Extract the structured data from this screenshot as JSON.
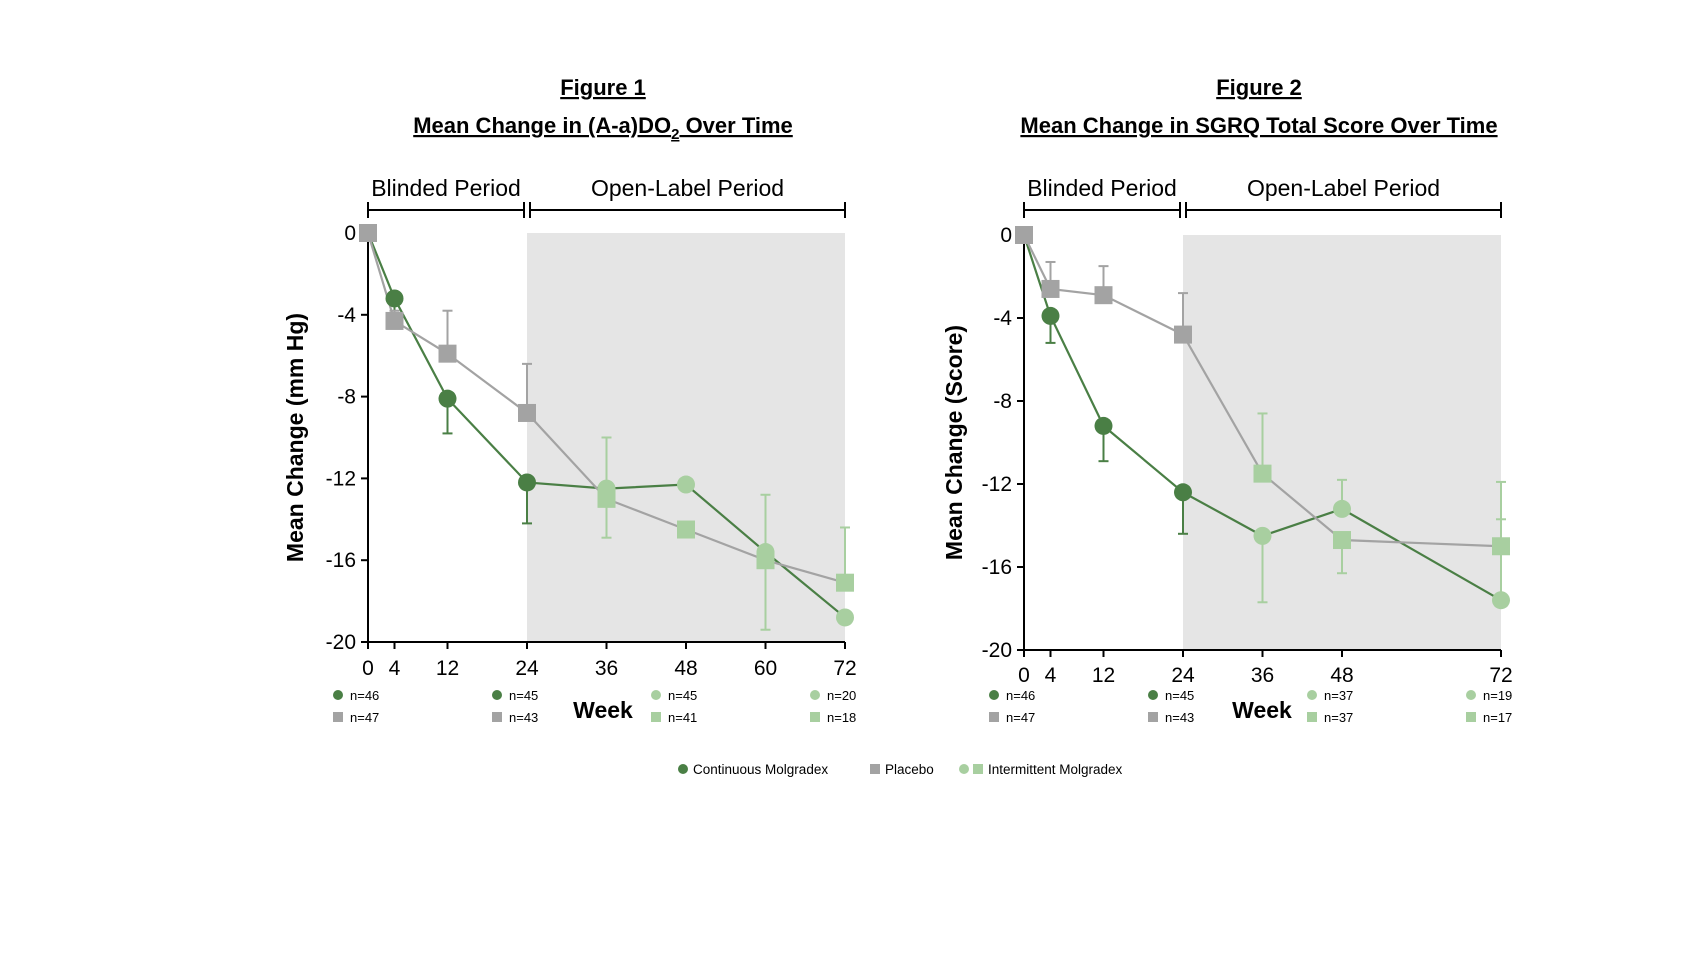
{
  "colors": {
    "continuous": "#4a7f45",
    "placebo": "#a3a3a3",
    "intermittent": "#a8cfa0",
    "shade": "#e5e5e5"
  },
  "legend": {
    "items": [
      {
        "label": "Continuous Molgradex",
        "color": "#4a7f45",
        "markers": [
          "circle"
        ]
      },
      {
        "label": "Placebo",
        "color": "#a3a3a3",
        "markers": [
          "square"
        ]
      },
      {
        "label": "Intermittent Molgradex",
        "color": "#a8cfa0",
        "markers": [
          "circle",
          "square"
        ]
      }
    ]
  },
  "chart_data": [
    {
      "type": "line",
      "figure_label": "Figure 1",
      "title": "Mean Change in (A-a)DO",
      "title_subscript": "2",
      "title_suffix": " Over Time",
      "ylabel": "Mean Change (mm Hg)",
      "xlabel": "Week",
      "ylim": [
        -20,
        0
      ],
      "yticks": [
        0,
        -4,
        -8,
        -12,
        -16,
        -20
      ],
      "xlim": [
        0,
        72
      ],
      "xticks": [
        0,
        4,
        12,
        24,
        36,
        48,
        60,
        72
      ],
      "periods": [
        {
          "label": "Blinded Period",
          "from": 0,
          "to": 24,
          "shaded": false
        },
        {
          "label": "Open-Label Period",
          "from": 24,
          "to": 72,
          "shaded": true
        }
      ],
      "series": [
        {
          "name": "Continuous Molgradex",
          "color_key": "continuous",
          "marker": "circle",
          "points": [
            {
              "x": 0,
              "y": 0
            },
            {
              "x": 4,
              "y": -3.2,
              "err_low": -4.3,
              "err_high": -3.2
            },
            {
              "x": 12,
              "y": -8.1,
              "err_low": -9.8,
              "err_high": -8.1
            },
            {
              "x": 24,
              "y": -12.2,
              "err_low": -14.2,
              "err_high": -12.2
            },
            {
              "x": 36,
              "y": -12.5,
              "err_low": -12.5,
              "err_high": -12.5
            },
            {
              "x": 48,
              "y": -12.3
            },
            {
              "x": 60,
              "y": -15.6
            },
            {
              "x": 72,
              "y": -18.8
            }
          ]
        },
        {
          "name": "Placebo",
          "color_key": "placebo",
          "marker": "square",
          "points": [
            {
              "x": 0,
              "y": 0
            },
            {
              "x": 4,
              "y": -4.3,
              "err_low": -4.3,
              "err_high": -3.8
            },
            {
              "x": 12,
              "y": -5.9,
              "err_low": -5.9,
              "err_high": -3.8
            },
            {
              "x": 24,
              "y": -8.8,
              "err_low": -8.8,
              "err_high": -6.4
            },
            {
              "x": 36,
              "y": -13.0
            },
            {
              "x": 48,
              "y": -14.5
            },
            {
              "x": 60,
              "y": -16.0
            },
            {
              "x": 72,
              "y": -17.1
            }
          ]
        },
        {
          "name": "Intermittent Molgradex (circle)",
          "color_key": "intermittent",
          "marker": "circle",
          "points": [
            {
              "x": 36,
              "y": -12.5
            },
            {
              "x": 48,
              "y": -12.3
            },
            {
              "x": 60,
              "y": -15.6
            },
            {
              "x": 72,
              "y": -18.8
            }
          ]
        },
        {
          "name": "Intermittent Molgradex (square)",
          "color_key": "intermittent",
          "marker": "square",
          "points": [
            {
              "x": 36,
              "y": -13.0,
              "err_low": -14.9,
              "err_high": -10.0
            },
            {
              "x": 48,
              "y": -14.5
            },
            {
              "x": 60,
              "y": -16.0,
              "err_low": -19.4,
              "err_high": -12.8
            },
            {
              "x": 72,
              "y": -17.1,
              "err_low": -17.1,
              "err_high": -14.4
            }
          ]
        }
      ],
      "n_counts": [
        {
          "x": 0,
          "row": 0,
          "marker": "circle",
          "color_key": "continuous",
          "text": "n=46"
        },
        {
          "x": 0,
          "row": 1,
          "marker": "square",
          "color_key": "placebo",
          "text": "n=47"
        },
        {
          "x": 24,
          "row": 0,
          "marker": "circle",
          "color_key": "continuous",
          "text": "n=45"
        },
        {
          "x": 24,
          "row": 1,
          "marker": "square",
          "color_key": "placebo",
          "text": "n=43"
        },
        {
          "x": 48,
          "row": 0,
          "marker": "circle",
          "color_key": "intermittent",
          "text": "n=45"
        },
        {
          "x": 48,
          "row": 1,
          "marker": "square",
          "color_key": "intermittent",
          "text": "n=41"
        },
        {
          "x": 72,
          "row": 0,
          "marker": "circle",
          "color_key": "intermittent",
          "text": "n=20"
        },
        {
          "x": 72,
          "row": 1,
          "marker": "square",
          "color_key": "intermittent",
          "text": "n=18"
        }
      ]
    },
    {
      "type": "line",
      "figure_label": "Figure 2",
      "title": "Mean Change in SGRQ Total Score Over Time",
      "title_subscript": "",
      "title_suffix": "",
      "ylabel": "Mean Change (Score)",
      "xlabel": "Week",
      "ylim": [
        -20,
        0
      ],
      "yticks": [
        0,
        -4,
        -8,
        -12,
        -16,
        -20
      ],
      "xlim": [
        0,
        72
      ],
      "xticks": [
        0,
        4,
        12,
        24,
        36,
        48,
        72
      ],
      "periods": [
        {
          "label": "Blinded Period",
          "from": 0,
          "to": 24,
          "shaded": false
        },
        {
          "label": "Open-Label Period",
          "from": 24,
          "to": 72,
          "shaded": true
        }
      ],
      "series": [
        {
          "name": "Continuous Molgradex",
          "color_key": "continuous",
          "marker": "circle",
          "points": [
            {
              "x": 0,
              "y": 0
            },
            {
              "x": 4,
              "y": -3.9,
              "err_low": -5.2,
              "err_high": -3.9
            },
            {
              "x": 12,
              "y": -9.2,
              "err_low": -10.9,
              "err_high": -9.2
            },
            {
              "x": 24,
              "y": -12.4,
              "err_low": -14.4,
              "err_high": -12.4
            },
            {
              "x": 36,
              "y": -14.5
            },
            {
              "x": 48,
              "y": -13.2
            },
            {
              "x": 72,
              "y": -17.6
            }
          ]
        },
        {
          "name": "Placebo",
          "color_key": "placebo",
          "marker": "square",
          "points": [
            {
              "x": 0,
              "y": 0
            },
            {
              "x": 4,
              "y": -2.6,
              "err_low": -2.6,
              "err_high": -1.3
            },
            {
              "x": 12,
              "y": -2.9,
              "err_low": -2.9,
              "err_high": -1.5
            },
            {
              "x": 24,
              "y": -4.8,
              "err_low": -4.8,
              "err_high": -2.8
            },
            {
              "x": 36,
              "y": -11.5
            },
            {
              "x": 48,
              "y": -14.7
            },
            {
              "x": 72,
              "y": -15.0
            }
          ]
        },
        {
          "name": "Intermittent Molgradex (circle)",
          "color_key": "intermittent",
          "marker": "circle",
          "points": [
            {
              "x": 36,
              "y": -14.5,
              "err_low": -17.7,
              "err_high": -14.5
            },
            {
              "x": 48,
              "y": -13.2,
              "err_low": -13.2,
              "err_high": -11.8
            },
            {
              "x": 72,
              "y": -17.6,
              "err_low": -17.6,
              "err_high": -11.9
            }
          ]
        },
        {
          "name": "Intermittent Molgradex (square)",
          "color_key": "intermittent",
          "marker": "square",
          "points": [
            {
              "x": 36,
              "y": -11.5,
              "err_low": -11.5,
              "err_high": -8.6
            },
            {
              "x": 48,
              "y": -14.7,
              "err_low": -16.3,
              "err_high": -14.7
            },
            {
              "x": 72,
              "y": -15.0,
              "err_low": -15.0,
              "err_high": -13.7
            }
          ]
        }
      ],
      "n_counts": [
        {
          "x": 0,
          "row": 0,
          "marker": "circle",
          "color_key": "continuous",
          "text": "n=46"
        },
        {
          "x": 0,
          "row": 1,
          "marker": "square",
          "color_key": "placebo",
          "text": "n=47"
        },
        {
          "x": 24,
          "row": 0,
          "marker": "circle",
          "color_key": "continuous",
          "text": "n=45"
        },
        {
          "x": 24,
          "row": 1,
          "marker": "square",
          "color_key": "placebo",
          "text": "n=43"
        },
        {
          "x": 48,
          "row": 0,
          "marker": "circle",
          "color_key": "intermittent",
          "text": "n=37"
        },
        {
          "x": 48,
          "row": 1,
          "marker": "square",
          "color_key": "intermittent",
          "text": "n=37"
        },
        {
          "x": 72,
          "row": 0,
          "marker": "circle",
          "color_key": "intermittent",
          "text": "n=19"
        },
        {
          "x": 72,
          "row": 1,
          "marker": "square",
          "color_key": "intermittent",
          "text": "n=17"
        }
      ]
    }
  ]
}
